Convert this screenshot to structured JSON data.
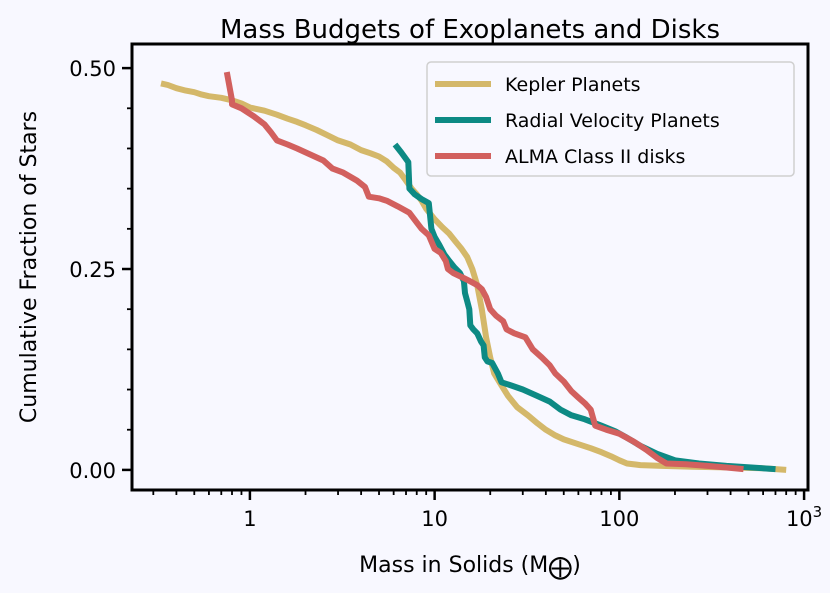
{
  "chart_data": {
    "type": "line",
    "title": "Mass Budgets of Exoplanets and Disks",
    "xlabel": "Mass in Solids (M",
    "xlabel_symbol": "⨁",
    "xlabel_close": ")",
    "ylabel": "Cumulative Fraction of Stars",
    "xscale": "log",
    "xlim": [
      0.23,
      1050
    ],
    "ylim": [
      -0.025,
      0.53
    ],
    "x_ticks": [
      {
        "value": 1,
        "label": "1"
      },
      {
        "value": 10,
        "label": "10"
      },
      {
        "value": 100,
        "label": "100"
      },
      {
        "value": 1000,
        "label": "10",
        "sup": "3"
      }
    ],
    "y_ticks": [
      {
        "value": 0.0,
        "label": "0.00"
      },
      {
        "value": 0.25,
        "label": "0.25"
      },
      {
        "value": 0.5,
        "label": "0.50"
      }
    ],
    "legend_position": "top-right",
    "series": [
      {
        "name": "Kepler Planets",
        "color": "#d4b86a",
        "points": [
          [
            0.33,
            0.481
          ],
          [
            0.36,
            0.479
          ],
          [
            0.4,
            0.475
          ],
          [
            0.45,
            0.472
          ],
          [
            0.5,
            0.47
          ],
          [
            0.55,
            0.467
          ],
          [
            0.6,
            0.465
          ],
          [
            0.7,
            0.463
          ],
          [
            0.8,
            0.46
          ],
          [
            0.9,
            0.456
          ],
          [
            1.0,
            0.451
          ],
          [
            1.2,
            0.447
          ],
          [
            1.4,
            0.442
          ],
          [
            1.6,
            0.437
          ],
          [
            1.8,
            0.433
          ],
          [
            2.0,
            0.429
          ],
          [
            2.3,
            0.423
          ],
          [
            2.6,
            0.417
          ],
          [
            3.0,
            0.41
          ],
          [
            3.5,
            0.405
          ],
          [
            4.0,
            0.398
          ],
          [
            4.5,
            0.394
          ],
          [
            5.0,
            0.39
          ],
          [
            5.5,
            0.384
          ],
          [
            6.0,
            0.376
          ],
          [
            6.5,
            0.37
          ],
          [
            7.0,
            0.36
          ],
          [
            7.5,
            0.35
          ],
          [
            8.0,
            0.343
          ],
          [
            8.5,
            0.335
          ],
          [
            9.0,
            0.325
          ],
          [
            10.0,
            0.312
          ],
          [
            11.0,
            0.302
          ],
          [
            12.0,
            0.294
          ],
          [
            13.0,
            0.284
          ],
          [
            14.0,
            0.275
          ],
          [
            15.0,
            0.265
          ],
          [
            16.0,
            0.25
          ],
          [
            17.0,
            0.23
          ],
          [
            18.0,
            0.2
          ],
          [
            19.0,
            0.165
          ],
          [
            20.0,
            0.14
          ],
          [
            21.0,
            0.12
          ],
          [
            23.0,
            0.105
          ],
          [
            25.0,
            0.092
          ],
          [
            28.0,
            0.078
          ],
          [
            32.0,
            0.068
          ],
          [
            36.0,
            0.058
          ],
          [
            40.0,
            0.05
          ],
          [
            45.0,
            0.043
          ],
          [
            50.0,
            0.038
          ],
          [
            60.0,
            0.032
          ],
          [
            70.0,
            0.027
          ],
          [
            80.0,
            0.022
          ],
          [
            90.0,
            0.017
          ],
          [
            100.0,
            0.012
          ],
          [
            110.0,
            0.008
          ],
          [
            130.0,
            0.006
          ],
          [
            170.0,
            0.005
          ],
          [
            250.0,
            0.004
          ],
          [
            400.0,
            0.003
          ],
          [
            600.0,
            0.002
          ],
          [
            800.0,
            0.0
          ]
        ]
      },
      {
        "name": "Radial Velocity Planets",
        "color": "#0d8a84",
        "points": [
          [
            6.1,
            0.405
          ],
          [
            6.6,
            0.395
          ],
          [
            7.2,
            0.383
          ],
          [
            7.3,
            0.35
          ],
          [
            7.8,
            0.343
          ],
          [
            8.5,
            0.337
          ],
          [
            9.3,
            0.332
          ],
          [
            9.6,
            0.3
          ],
          [
            10.0,
            0.29
          ],
          [
            10.6,
            0.28
          ],
          [
            11.3,
            0.268
          ],
          [
            12.0,
            0.26
          ],
          [
            12.8,
            0.252
          ],
          [
            13.7,
            0.245
          ],
          [
            14.4,
            0.235
          ],
          [
            14.6,
            0.22
          ],
          [
            15.0,
            0.21
          ],
          [
            15.4,
            0.2
          ],
          [
            15.6,
            0.18
          ],
          [
            16.2,
            0.175
          ],
          [
            17.0,
            0.17
          ],
          [
            17.8,
            0.16
          ],
          [
            18.4,
            0.155
          ],
          [
            18.7,
            0.14
          ],
          [
            19.3,
            0.135
          ],
          [
            20.5,
            0.133
          ],
          [
            22.0,
            0.12
          ],
          [
            23.0,
            0.109
          ],
          [
            26.0,
            0.105
          ],
          [
            30.0,
            0.1
          ],
          [
            36.0,
            0.092
          ],
          [
            42.0,
            0.085
          ],
          [
            48.0,
            0.075
          ],
          [
            55.0,
            0.068
          ],
          [
            65.0,
            0.063
          ],
          [
            80.0,
            0.055
          ],
          [
            95.0,
            0.048
          ],
          [
            110.0,
            0.04
          ],
          [
            130.0,
            0.03
          ],
          [
            160.0,
            0.02
          ],
          [
            200.0,
            0.012
          ],
          [
            270.0,
            0.008
          ],
          [
            380.0,
            0.005
          ],
          [
            520.0,
            0.003
          ],
          [
            700.0,
            0.001
          ]
        ]
      },
      {
        "name": "ALMA Class II disks",
        "color": "#d2605e",
        "points": [
          [
            0.75,
            0.495
          ],
          [
            0.8,
            0.46
          ],
          [
            0.8,
            0.455
          ],
          [
            0.9,
            0.45
          ],
          [
            1.05,
            0.44
          ],
          [
            1.2,
            0.43
          ],
          [
            1.3,
            0.42
          ],
          [
            1.4,
            0.41
          ],
          [
            1.6,
            0.405
          ],
          [
            1.8,
            0.4
          ],
          [
            2.1,
            0.393
          ],
          [
            2.5,
            0.385
          ],
          [
            2.8,
            0.375
          ],
          [
            3.2,
            0.37
          ],
          [
            3.8,
            0.36
          ],
          [
            4.2,
            0.352
          ],
          [
            4.4,
            0.34
          ],
          [
            5.0,
            0.338
          ],
          [
            5.5,
            0.335
          ],
          [
            6.3,
            0.328
          ],
          [
            7.3,
            0.32
          ],
          [
            8.0,
            0.308
          ],
          [
            8.5,
            0.3
          ],
          [
            9.3,
            0.292
          ],
          [
            10.0,
            0.275
          ],
          [
            10.8,
            0.27
          ],
          [
            11.5,
            0.26
          ],
          [
            11.8,
            0.25
          ],
          [
            12.6,
            0.245
          ],
          [
            14.0,
            0.24
          ],
          [
            15.5,
            0.235
          ],
          [
            17.0,
            0.23
          ],
          [
            18.0,
            0.225
          ],
          [
            19.0,
            0.215
          ],
          [
            20.0,
            0.2
          ],
          [
            21.5,
            0.192
          ],
          [
            23.5,
            0.185
          ],
          [
            24.5,
            0.175
          ],
          [
            27.0,
            0.17
          ],
          [
            31.0,
            0.165
          ],
          [
            34.0,
            0.15
          ],
          [
            38.0,
            0.14
          ],
          [
            42.0,
            0.13
          ],
          [
            45.0,
            0.12
          ],
          [
            50.0,
            0.11
          ],
          [
            55.0,
            0.098
          ],
          [
            60.0,
            0.09
          ],
          [
            65.0,
            0.083
          ],
          [
            70.0,
            0.075
          ],
          [
            74.0,
            0.055
          ],
          [
            85.0,
            0.05
          ],
          [
            100.0,
            0.045
          ],
          [
            120.0,
            0.035
          ],
          [
            140.0,
            0.025
          ],
          [
            160.0,
            0.015
          ],
          [
            180.0,
            0.008
          ],
          [
            230.0,
            0.007
          ],
          [
            300.0,
            0.005
          ],
          [
            380.0,
            0.003
          ],
          [
            470.0,
            0.001
          ]
        ]
      }
    ]
  }
}
